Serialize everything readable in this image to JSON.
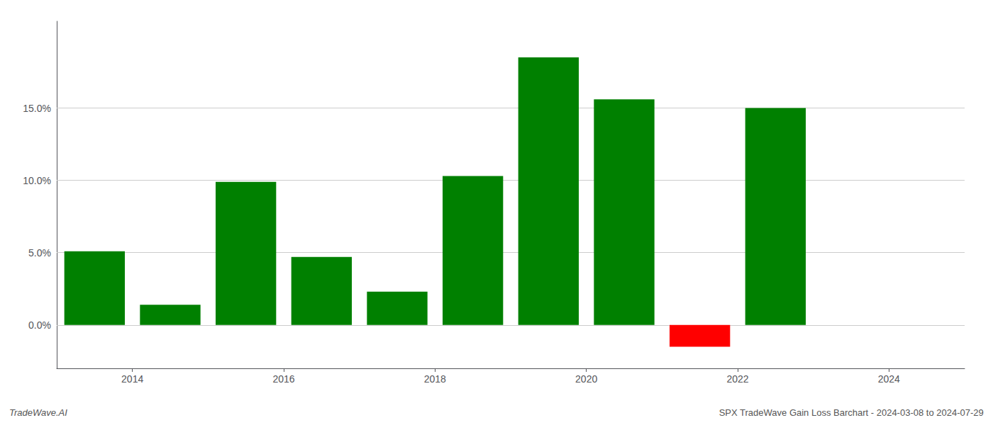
{
  "chart_data": {
    "type": "bar",
    "title": "SPX TradeWave Gain Loss Barchart - 2024-03-08 to 2024-07-29",
    "annotations": [
      "TradeWave.AI"
    ],
    "x": [
      2013.5,
      2014.5,
      2015.5,
      2016.5,
      2017.5,
      2018.5,
      2019.5,
      2020.5,
      2021.5,
      2022.5
    ],
    "values": [
      5.1,
      1.4,
      9.9,
      4.7,
      2.3,
      10.3,
      18.5,
      15.6,
      -1.5,
      15.0
    ],
    "colors": [
      "#008000",
      "#008000",
      "#008000",
      "#008000",
      "#008000",
      "#008000",
      "#008000",
      "#008000",
      "#ff0000",
      "#008000"
    ],
    "xlim": [
      2013.0,
      2025.0
    ],
    "xticks": [
      2014,
      2016,
      2018,
      2020,
      2022,
      2024
    ],
    "ylim": [
      -3.0,
      21.0
    ],
    "yticks": [
      {
        "value": 0.0,
        "label": "0.0%"
      },
      {
        "value": 5.0,
        "label": "5.0%"
      },
      {
        "value": 10.0,
        "label": "10.0%"
      },
      {
        "value": 15.0,
        "label": "15.0%"
      }
    ],
    "grid": true
  }
}
